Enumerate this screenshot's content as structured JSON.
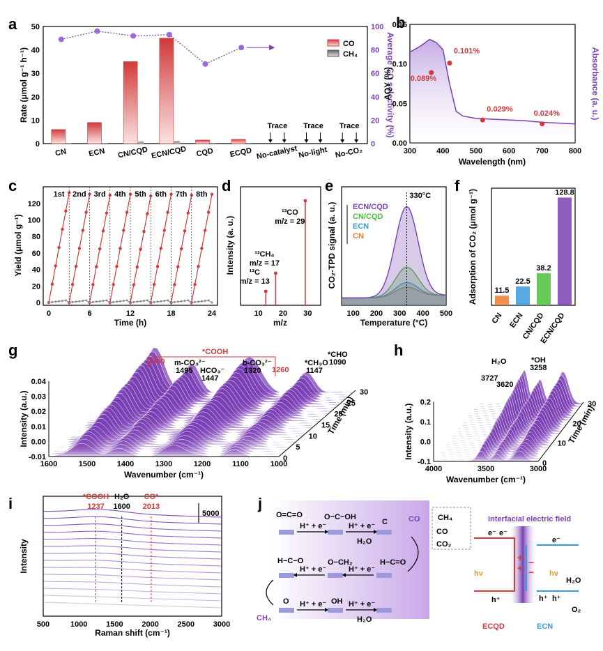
{
  "panels": {
    "a": "a",
    "b": "b",
    "c": "c",
    "d": "d",
    "e": "e",
    "f": "f",
    "g": "g",
    "h": "h",
    "i": "i",
    "j": "j"
  },
  "colors": {
    "purple": "#7b3fb5",
    "red": "#d13a3a",
    "green": "#4cbf3a",
    "blue": "#3a9ad9",
    "orange": "#f07a30",
    "gray": "#777777"
  },
  "chart_data": [
    {
      "panel": "a",
      "type": "bar",
      "categories": [
        "CN",
        "ECN",
        "CN/CQD",
        "ECN/CQD",
        "CQD",
        "ECQD",
        "No-catalyst",
        "No-light",
        "No-CO₂"
      ],
      "series": [
        {
          "name": "CO",
          "values": [
            6,
            9,
            35,
            45,
            1.5,
            1.8,
            0,
            0,
            0
          ]
        },
        {
          "name": "CH₄",
          "values": [
            0.15,
            0.2,
            0.8,
            1,
            0.1,
            0.1,
            0,
            0,
            0
          ]
        }
      ],
      "selectivity": [
        89,
        96,
        92,
        93,
        68,
        82
      ],
      "trace_label": "Trace",
      "ylabel_left": "Rate (μmol g⁻¹ h⁻¹)",
      "ylabel_right": "Average CO selectivity (%)",
      "ylim": [
        0,
        50
      ],
      "ylim_right": [
        0,
        100
      ],
      "yticks": [
        "0",
        "10",
        "20",
        "30",
        "40",
        "50"
      ],
      "yticks_right": [
        "0",
        "20",
        "40",
        "60",
        "80",
        "100"
      ],
      "legend": [
        "CO",
        "CH₄"
      ]
    },
    {
      "panel": "b",
      "type": "line+scatter",
      "xlabel": "Wavelength (nm)",
      "ylabel_left": "AQY (%)",
      "ylabel_right": "Absorbance (a. u.)",
      "xlim": [
        300,
        800
      ],
      "ylim": [
        0,
        0.15
      ],
      "xticks": [
        "300",
        "400",
        "500",
        "600",
        "700",
        "800"
      ],
      "yticks": [
        "0.00",
        "0.05",
        "0.10",
        "0.15"
      ],
      "points": [
        {
          "x": 365,
          "y": 0.089,
          "label": "0.089%"
        },
        {
          "x": 420,
          "y": 0.101,
          "label": "0.101%"
        },
        {
          "x": 520,
          "y": 0.029,
          "label": "0.029%"
        },
        {
          "x": 700,
          "y": 0.024,
          "label": "0.024%"
        }
      ],
      "absorbance": [
        [
          300,
          0.115
        ],
        [
          330,
          0.122
        ],
        [
          360,
          0.131
        ],
        [
          380,
          0.127
        ],
        [
          400,
          0.118
        ],
        [
          420,
          0.075
        ],
        [
          440,
          0.04
        ],
        [
          460,
          0.034
        ],
        [
          500,
          0.031
        ],
        [
          550,
          0.03
        ],
        [
          600,
          0.029
        ],
        [
          650,
          0.028
        ],
        [
          700,
          0.026
        ],
        [
          750,
          0.025
        ],
        [
          800,
          0.024
        ]
      ]
    },
    {
      "panel": "c",
      "type": "line",
      "xlabel": "Time (h)",
      "ylabel": "Yield (μmol g⁻¹)",
      "xlim": [
        0,
        24
      ],
      "ylim": [
        0,
        135
      ],
      "xticks": [
        "0",
        "6",
        "12",
        "18",
        "24"
      ],
      "yticks": [
        "0",
        "20",
        "40",
        "60",
        "80",
        "100",
        "120"
      ],
      "cycles": [
        "1st",
        "2nd",
        "3rd",
        "4th",
        "5th",
        "6th",
        "7th",
        "8th"
      ],
      "cycle_length_h": 3,
      "end_yields": [
        133,
        131,
        130,
        131,
        129,
        131,
        130,
        131
      ],
      "ch4_end": 3
    },
    {
      "panel": "d",
      "type": "bar",
      "xlabel": "m/z",
      "ylabel": "Intensity (a. u.)",
      "xticks": [
        "10",
        "20",
        "30"
      ],
      "peaks": [
        {
          "mz": 13,
          "rel": 0.06,
          "label": "¹³C",
          "sub": "m/z = 13"
        },
        {
          "mz": 17,
          "rel": 0.16,
          "label": "¹³CH₄",
          "sub": "m/z = 17"
        },
        {
          "mz": 29,
          "rel": 1.0,
          "label": "¹³CO",
          "sub": "m/z = 29"
        }
      ]
    },
    {
      "panel": "e",
      "type": "area",
      "xlabel": "Temperature (°C)",
      "ylabel": "CO₂-TPD signal (a. u.)",
      "xlim": [
        50,
        500
      ],
      "xticks": [
        "100",
        "200",
        "300",
        "400",
        "500"
      ],
      "annotation": "330°C",
      "series": [
        {
          "name": "ECN/CQD",
          "peak": 1.0
        },
        {
          "name": "CN/CQD",
          "peak": 0.33
        },
        {
          "name": "ECN",
          "peak": 0.16
        },
        {
          "name": "CN",
          "peak": 0.11
        }
      ]
    },
    {
      "panel": "f",
      "type": "bar",
      "ylabel": "Adsorption of CO₂ (μmol g⁻¹)",
      "categories": [
        "CN",
        "ECN",
        "CN/CQD",
        "ECN/CQD"
      ],
      "values": [
        11.5,
        22.5,
        38.2,
        128.8
      ],
      "labels": [
        "11.5",
        "22.5",
        "38.2",
        "128.8"
      ]
    },
    {
      "panel": "g",
      "type": "waterfall",
      "xlabel": "Wavenumber (cm⁻¹)",
      "ylabel": "Intensity (a.u.)",
      "zlabel": "Time (min)",
      "xticks": [
        "1600",
        "1500",
        "1400",
        "1300",
        "1200",
        "1100",
        "1000"
      ],
      "yticks": [
        "-0.01",
        "0.00",
        "0.01",
        "0.02",
        "0.03",
        "0.04"
      ],
      "zticks": [
        "0",
        "5",
        "10",
        "15",
        "20",
        "25",
        "30"
      ],
      "annotations": [
        {
          "t": "1590",
          "red": true
        },
        {
          "t": "*COOH",
          "red": true
        },
        {
          "t": "1260",
          "red": true
        },
        {
          "t": "m-CO₃²⁻",
          "sub": "1495"
        },
        {
          "t": "HCO₃⁻",
          "sub": "1447"
        },
        {
          "t": "b-CO₃²⁻",
          "sub": "1320"
        },
        {
          "t": "*CH₃O",
          "sub": "1147"
        },
        {
          "t": "*CHO",
          "sub": "1090"
        }
      ]
    },
    {
      "panel": "h",
      "type": "waterfall",
      "xlabel": "Wavenumber (cm⁻¹)",
      "ylabel": "Intensity (a.u.)",
      "zlabel": "Time (min)",
      "xticks": [
        "4000",
        "3500",
        "3000"
      ],
      "yticks": [
        "-0.1",
        "0.0",
        "0.1",
        "0.2"
      ],
      "zticks": [
        "0",
        "10",
        "20",
        "30"
      ],
      "annotations": [
        {
          "t": "H₂O"
        },
        {
          "t": "3727"
        },
        {
          "t": "3620"
        },
        {
          "t": "*OH"
        },
        {
          "t": "3258"
        }
      ]
    },
    {
      "panel": "i",
      "type": "line",
      "xlabel": "Raman shift (cm⁻¹)",
      "ylabel": "Intensity",
      "xlim": [
        500,
        3000
      ],
      "xticks": [
        "500",
        "1000",
        "1500",
        "2000",
        "2500",
        "3000"
      ],
      "scale_bar": "5000",
      "annotations": [
        {
          "t": "*COOH",
          "sub": "1237",
          "x": 1237,
          "red": true
        },
        {
          "t": "H₂O",
          "sub": "1600",
          "x": 1600,
          "red": false
        },
        {
          "t": "CO*",
          "sub": "2013",
          "x": 2013,
          "red": true
        }
      ]
    }
  ],
  "schematic": {
    "molecules": {
      "co2": "O=C=O",
      "cooh": "O−C−OH",
      "co": "C",
      "co_out": "CO",
      "cho": "H−C=O",
      "och2": "O−CH₂",
      "ch3o": "H−C−O",
      "o": "O",
      "oh": "OH",
      "ch4": "CH₄"
    },
    "step_label": "H⁺ + e⁻",
    "h2o": "H₂O",
    "field_title": "Interfacial electric field",
    "products": [
      "CH₄",
      "CO",
      "CO₂"
    ],
    "electron": "e⁻",
    "hole": "h⁺",
    "hv": "hν",
    "water": "H₂O",
    "oxygen": "O₂",
    "materials": [
      "ECQD",
      "ECN"
    ]
  }
}
